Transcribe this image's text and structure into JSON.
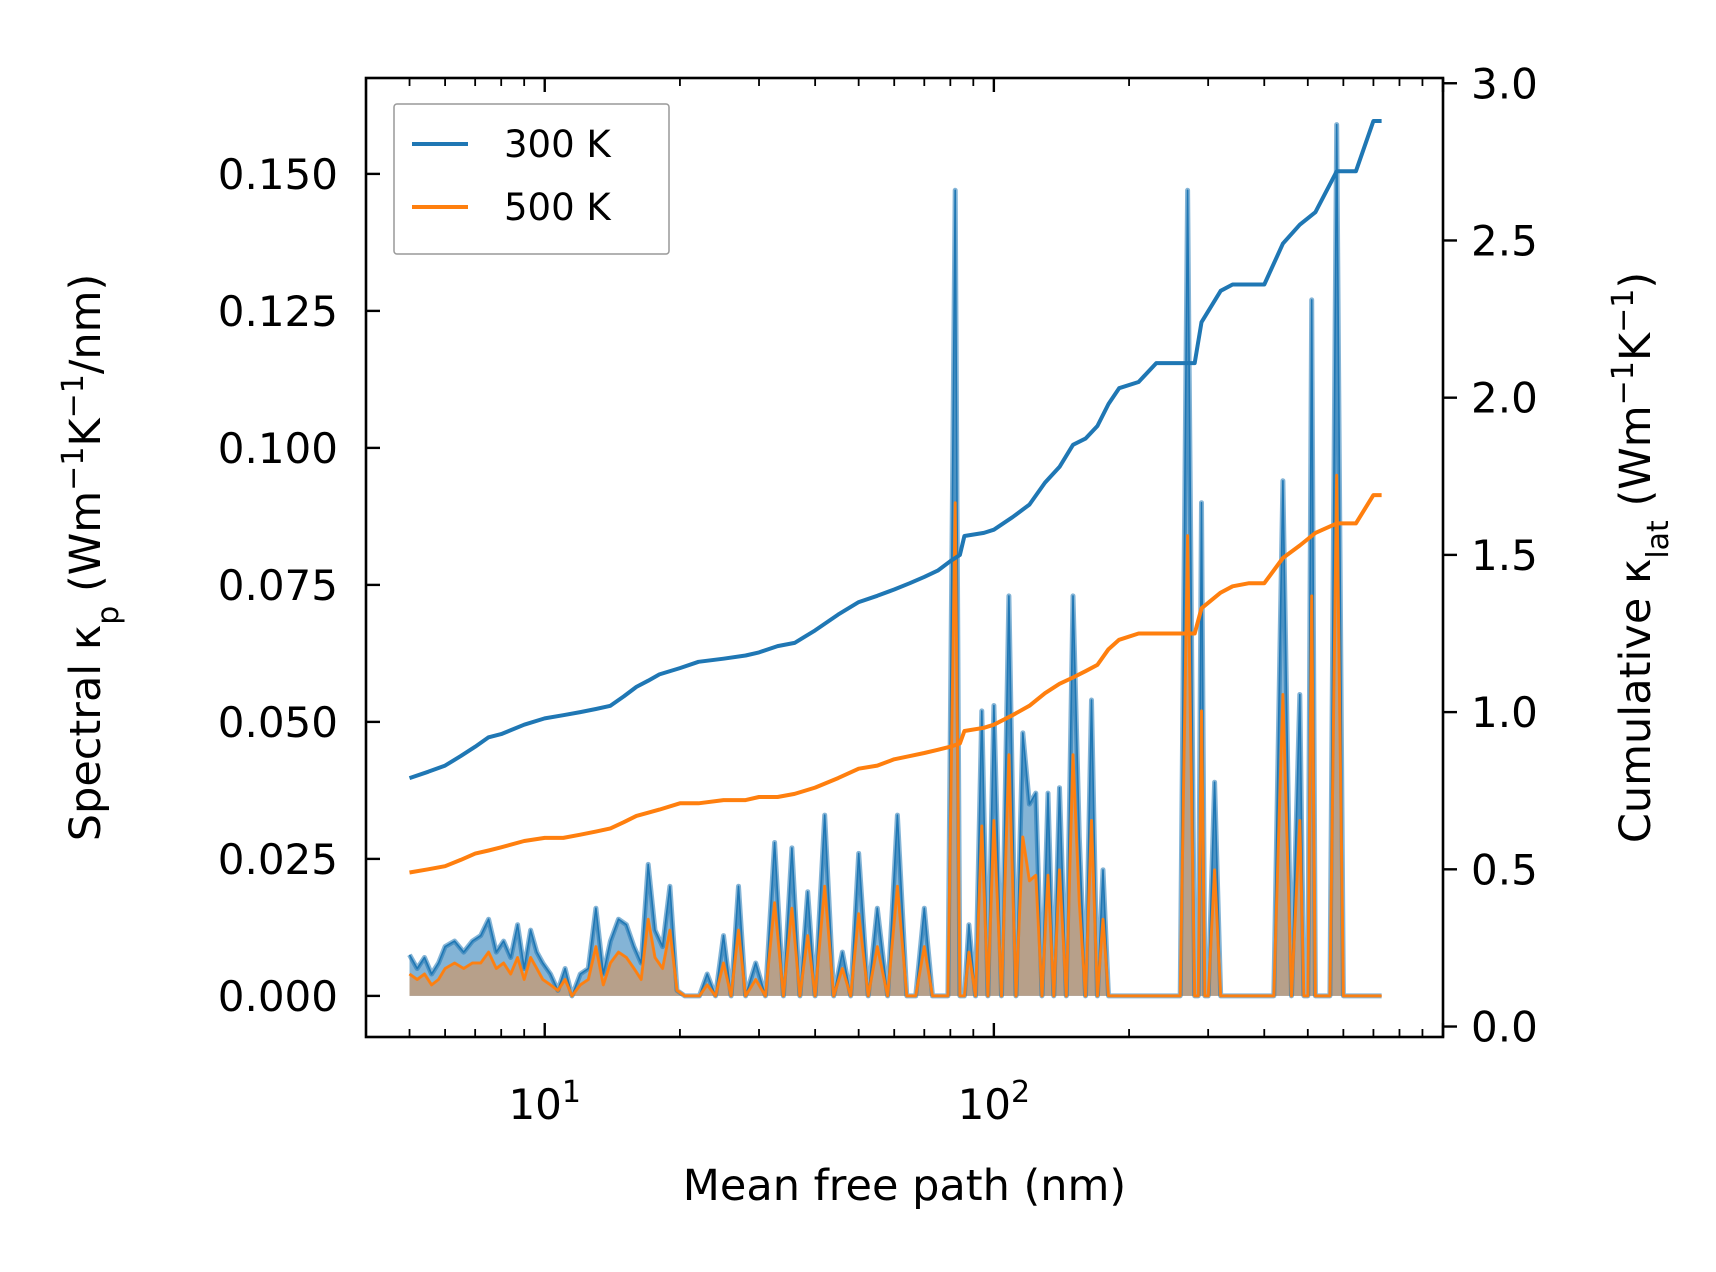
{
  "chart_data": {
    "type": "line",
    "title": "",
    "xlabel": "Mean free path (nm)",
    "ylabel_left": {
      "main": "Spectral κ",
      "sub": "p",
      "unit_open": " (Wm",
      "sup1": "−1",
      "mid": "K",
      "sup2": "−1",
      "unit_close": "/nm)"
    },
    "ylabel_right": {
      "main": "Cumulative κ",
      "sub": "lat",
      "unit_open": " (Wm",
      "sup1": "−1",
      "mid": "K",
      "sup2": "−1",
      "unit_close": ")"
    },
    "xscale": "log",
    "xlim": [
      4.0,
      1000
    ],
    "ylim_left": [
      -0.0075,
      0.1675
    ],
    "ylim_right": [
      -0.0333,
      3.0167
    ],
    "x_ticks": [
      {
        "value": 10,
        "base": "10",
        "exp": "1"
      },
      {
        "value": 100,
        "base": "10",
        "exp": "2"
      }
    ],
    "y_left_ticks": [
      "0.000",
      "0.025",
      "0.050",
      "0.075",
      "0.100",
      "0.125",
      "0.150"
    ],
    "y_left_tick_values": [
      0,
      0.025,
      0.05,
      0.075,
      0.1,
      0.125,
      0.15
    ],
    "y_right_ticks": [
      "0.0",
      "0.5",
      "1.0",
      "1.5",
      "2.0",
      "2.5",
      "3.0"
    ],
    "y_right_tick_values": [
      0,
      0.5,
      1.0,
      1.5,
      2.0,
      2.5,
      3.0
    ],
    "legend": {
      "position": "top-left",
      "entries": [
        "300 K",
        "500 K"
      ]
    },
    "colors": {
      "300K": "#1f77b4",
      "500K": "#ff7f0e",
      "fill_500K": "#c89a70"
    },
    "series": [
      {
        "name": "300 K",
        "kind": "cumulative",
        "axis": "right",
        "color": "#1f77b4",
        "x": [
          5.0,
          5.5,
          6.0,
          6.5,
          7.0,
          7.5,
          8.0,
          9.0,
          10.0,
          11.0,
          12.0,
          13.0,
          14.0,
          15.0,
          16.0,
          17.0,
          18.0,
          20.0,
          22.0,
          25.0,
          28.0,
          30.0,
          33.0,
          36.0,
          40.0,
          45.0,
          50.0,
          55.0,
          60.0,
          65.0,
          70.0,
          75.0,
          80.0,
          84.0,
          86.0,
          95.0,
          100.0,
          110.0,
          120.0,
          130.0,
          140.0,
          150.0,
          160.0,
          170.0,
          180.0,
          190.0,
          210.0,
          230.0,
          260.0,
          280.0,
          290.0,
          320.0,
          340.0,
          370.0,
          400.0,
          440.0,
          480.0,
          520.0,
          580.0,
          640.0,
          700.0,
          730.0
        ],
        "y": [
          0.79,
          0.81,
          0.83,
          0.86,
          0.89,
          0.92,
          0.93,
          0.96,
          0.98,
          0.99,
          1.0,
          1.01,
          1.02,
          1.05,
          1.08,
          1.1,
          1.12,
          1.14,
          1.16,
          1.17,
          1.18,
          1.19,
          1.21,
          1.22,
          1.26,
          1.31,
          1.35,
          1.37,
          1.39,
          1.41,
          1.43,
          1.45,
          1.48,
          1.5,
          1.56,
          1.57,
          1.58,
          1.62,
          1.66,
          1.73,
          1.78,
          1.85,
          1.87,
          1.91,
          1.98,
          2.03,
          2.05,
          2.11,
          2.11,
          2.11,
          2.24,
          2.34,
          2.36,
          2.36,
          2.36,
          2.49,
          2.55,
          2.59,
          2.72,
          2.72,
          2.88,
          2.88
        ]
      },
      {
        "name": "500 K",
        "kind": "cumulative",
        "axis": "right",
        "color": "#ff7f0e",
        "x": [
          5.0,
          5.5,
          6.0,
          6.5,
          7.0,
          7.5,
          8.0,
          9.0,
          10.0,
          11.0,
          12.0,
          13.0,
          14.0,
          15.0,
          16.0,
          17.0,
          18.0,
          20.0,
          22.0,
          25.0,
          28.0,
          30.0,
          33.0,
          36.0,
          40.0,
          45.0,
          50.0,
          55.0,
          60.0,
          65.0,
          70.0,
          75.0,
          80.0,
          84.0,
          86.0,
          95.0,
          100.0,
          110.0,
          120.0,
          130.0,
          140.0,
          150.0,
          160.0,
          170.0,
          180.0,
          190.0,
          210.0,
          230.0,
          260.0,
          280.0,
          290.0,
          320.0,
          340.0,
          370.0,
          400.0,
          440.0,
          480.0,
          520.0,
          580.0,
          640.0,
          700.0,
          730.0
        ],
        "y": [
          0.49,
          0.5,
          0.51,
          0.53,
          0.55,
          0.56,
          0.57,
          0.59,
          0.6,
          0.6,
          0.61,
          0.62,
          0.63,
          0.65,
          0.67,
          0.68,
          0.69,
          0.71,
          0.71,
          0.72,
          0.72,
          0.73,
          0.73,
          0.74,
          0.76,
          0.79,
          0.82,
          0.83,
          0.85,
          0.86,
          0.87,
          0.88,
          0.89,
          0.9,
          0.94,
          0.95,
          0.96,
          0.99,
          1.02,
          1.06,
          1.09,
          1.11,
          1.13,
          1.15,
          1.2,
          1.23,
          1.25,
          1.25,
          1.25,
          1.25,
          1.33,
          1.38,
          1.4,
          1.41,
          1.41,
          1.49,
          1.53,
          1.57,
          1.6,
          1.6,
          1.69,
          1.69
        ]
      },
      {
        "name": "300 K spectral",
        "kind": "spectral",
        "axis": "left",
        "color": "#1f77b4",
        "x": [
          5.0,
          5.2,
          5.4,
          5.6,
          5.8,
          6.0,
          6.3,
          6.6,
          6.9,
          7.2,
          7.5,
          7.8,
          8.1,
          8.4,
          8.7,
          9.0,
          9.3,
          9.6,
          9.9,
          10.3,
          10.7,
          11.1,
          11.5,
          12.0,
          12.5,
          13.0,
          13.5,
          14.0,
          14.6,
          15.2,
          15.8,
          16.4,
          17.0,
          17.6,
          18.3,
          19.0,
          19.7,
          20.5,
          21.3,
          22.1,
          23.0,
          24.0,
          25.0,
          26.0,
          27.0,
          28.0,
          29.5,
          31.0,
          32.5,
          34.0,
          35.5,
          37.0,
          38.5,
          40.0,
          42.0,
          44.0,
          46.0,
          48.0,
          50.0,
          52.5,
          55.0,
          58.0,
          61.0,
          64.0,
          67.0,
          70.0,
          73.0,
          76.0,
          79.0,
          82.0,
          84.0,
          86.0,
          88.0,
          91.0,
          94.0,
          97.0,
          100.0,
          104.0,
          108.0,
          112.0,
          116.0,
          120.0,
          124.0,
          128.0,
          132.0,
          136.0,
          140.0,
          145.0,
          150.0,
          155.0,
          160.0,
          165.0,
          170.0,
          175.0,
          180.0,
          185.0,
          190.0,
          195.0,
          200.0,
          210.0,
          220.0,
          230.0,
          240.0,
          250.0,
          260.0,
          270.0,
          280.0,
          285.0,
          290.0,
          295.0,
          300.0,
          310.0,
          320.0,
          330.0,
          340.0,
          350.0,
          360.0,
          370.0,
          380.0,
          390.0,
          400.0,
          420.0,
          440.0,
          460.0,
          480.0,
          490.0,
          500.0,
          510.0,
          520.0,
          540.0,
          560.0,
          580.0,
          600.0,
          620.0,
          640.0,
          660.0,
          680.0,
          700.0,
          710.0,
          720.0,
          730.0
        ],
        "y": [
          0.0075,
          0.005,
          0.007,
          0.004,
          0.006,
          0.009,
          0.01,
          0.008,
          0.01,
          0.011,
          0.014,
          0.008,
          0.01,
          0.007,
          0.013,
          0.005,
          0.012,
          0.008,
          0.006,
          0.004,
          0.001,
          0.005,
          0.0,
          0.004,
          0.005,
          0.016,
          0.004,
          0.01,
          0.014,
          0.013,
          0.009,
          0.006,
          0.024,
          0.012,
          0.009,
          0.02,
          0.001,
          0.0,
          0.0,
          0.0,
          0.004,
          0.0,
          0.011,
          0.0,
          0.02,
          0.0,
          0.006,
          0.0,
          0.028,
          0.0,
          0.027,
          0.0,
          0.019,
          0.0,
          0.033,
          0.0,
          0.008,
          0.0,
          0.026,
          0.0,
          0.016,
          0.0,
          0.033,
          0.0,
          0.0,
          0.016,
          0.0,
          0.0,
          0.0,
          0.147,
          0.0,
          0.0,
          0.013,
          0.0,
          0.052,
          0.0,
          0.053,
          0.0,
          0.073,
          0.0,
          0.048,
          0.035,
          0.037,
          0.0,
          0.037,
          0.0,
          0.038,
          0.0,
          0.073,
          0.029,
          0.0,
          0.054,
          0.0,
          0.023,
          0.0,
          0.0,
          0.0,
          0.0,
          0.0,
          0.0,
          0.0,
          0.0,
          0.0,
          0.0,
          0.0,
          0.147,
          0.0,
          0.0,
          0.09,
          0.0,
          0.0,
          0.039,
          0.0,
          0.0,
          0.0,
          0.0,
          0.0,
          0.0,
          0.0,
          0.0,
          0.0,
          0.0,
          0.094,
          0.0,
          0.055,
          0.0,
          0.0,
          0.127,
          0.0,
          0.0,
          0.0,
          0.159,
          0.0,
          0.0,
          0.0,
          0.0,
          0.0,
          0.0,
          0.0,
          0.0,
          0.0
        ]
      },
      {
        "name": "500 K spectral",
        "kind": "spectral",
        "axis": "left",
        "color": "#ff7f0e",
        "x": [
          5.0,
          5.2,
          5.4,
          5.6,
          5.8,
          6.0,
          6.3,
          6.6,
          6.9,
          7.2,
          7.5,
          7.8,
          8.1,
          8.4,
          8.7,
          9.0,
          9.3,
          9.6,
          9.9,
          10.3,
          10.7,
          11.1,
          11.5,
          12.0,
          12.5,
          13.0,
          13.5,
          14.0,
          14.6,
          15.2,
          15.8,
          16.4,
          17.0,
          17.6,
          18.3,
          19.0,
          19.7,
          20.5,
          21.3,
          22.1,
          23.0,
          24.0,
          25.0,
          26.0,
          27.0,
          28.0,
          29.5,
          31.0,
          32.5,
          34.0,
          35.5,
          37.0,
          38.5,
          40.0,
          42.0,
          44.0,
          46.0,
          48.0,
          50.0,
          52.5,
          55.0,
          58.0,
          61.0,
          64.0,
          67.0,
          70.0,
          73.0,
          76.0,
          79.0,
          82.0,
          84.0,
          86.0,
          88.0,
          91.0,
          94.0,
          97.0,
          100.0,
          104.0,
          108.0,
          112.0,
          116.0,
          120.0,
          124.0,
          128.0,
          132.0,
          136.0,
          140.0,
          145.0,
          150.0,
          155.0,
          160.0,
          165.0,
          170.0,
          175.0,
          180.0,
          185.0,
          190.0,
          195.0,
          200.0,
          210.0,
          220.0,
          230.0,
          240.0,
          250.0,
          260.0,
          270.0,
          280.0,
          285.0,
          290.0,
          295.0,
          300.0,
          310.0,
          320.0,
          330.0,
          340.0,
          350.0,
          360.0,
          370.0,
          380.0,
          390.0,
          400.0,
          420.0,
          440.0,
          460.0,
          480.0,
          490.0,
          500.0,
          510.0,
          520.0,
          540.0,
          560.0,
          580.0,
          600.0,
          620.0,
          640.0,
          660.0,
          680.0,
          700.0,
          710.0,
          720.0,
          730.0
        ],
        "y": [
          0.004,
          0.003,
          0.004,
          0.002,
          0.003,
          0.005,
          0.006,
          0.005,
          0.006,
          0.006,
          0.008,
          0.005,
          0.006,
          0.004,
          0.007,
          0.003,
          0.007,
          0.005,
          0.003,
          0.002,
          0.001,
          0.003,
          0.0,
          0.002,
          0.003,
          0.009,
          0.002,
          0.006,
          0.008,
          0.007,
          0.005,
          0.003,
          0.014,
          0.007,
          0.005,
          0.012,
          0.001,
          0.0,
          0.0,
          0.0,
          0.002,
          0.0,
          0.006,
          0.0,
          0.012,
          0.0,
          0.003,
          0.0,
          0.017,
          0.0,
          0.016,
          0.0,
          0.011,
          0.0,
          0.02,
          0.0,
          0.005,
          0.0,
          0.015,
          0.0,
          0.009,
          0.0,
          0.02,
          0.0,
          0.0,
          0.009,
          0.0,
          0.0,
          0.0,
          0.09,
          0.0,
          0.0,
          0.008,
          0.0,
          0.031,
          0.0,
          0.032,
          0.0,
          0.044,
          0.0,
          0.029,
          0.021,
          0.022,
          0.0,
          0.022,
          0.0,
          0.023,
          0.0,
          0.044,
          0.017,
          0.0,
          0.032,
          0.0,
          0.014,
          0.0,
          0.0,
          0.0,
          0.0,
          0.0,
          0.0,
          0.0,
          0.0,
          0.0,
          0.0,
          0.0,
          0.084,
          0.0,
          0.0,
          0.052,
          0.0,
          0.0,
          0.023,
          0.0,
          0.0,
          0.0,
          0.0,
          0.0,
          0.0,
          0.0,
          0.0,
          0.0,
          0.0,
          0.055,
          0.0,
          0.032,
          0.0,
          0.0,
          0.073,
          0.0,
          0.0,
          0.0,
          0.095,
          0.0,
          0.0,
          0.0,
          0.0,
          0.0,
          0.0,
          0.0,
          0.0,
          0.0
        ]
      }
    ]
  }
}
